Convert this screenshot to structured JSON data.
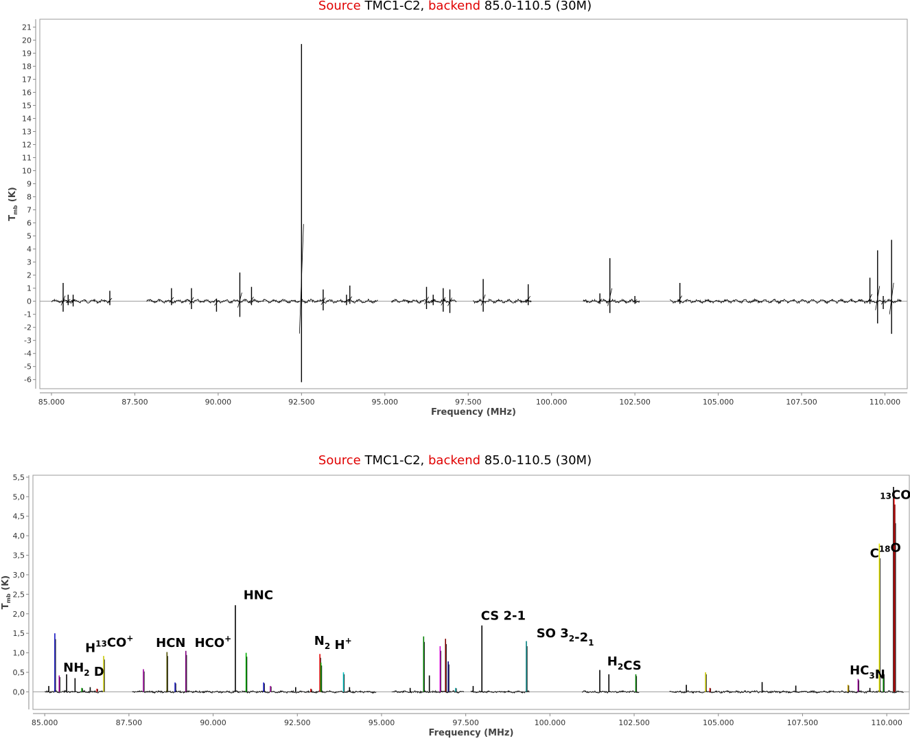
{
  "title_parts": {
    "w1": "Source",
    "w2": "TMC1-C2,",
    "w3": "backend",
    "w4": "85.0-110.5 (30M)"
  },
  "chart_data": [
    {
      "type": "line",
      "title": "Source TMC1-C2, backend 85.0-110.5 (30M)",
      "xlabel": "Frequency (MHz)",
      "ylabel": "T_mb (K)",
      "xlim": [
        84.65,
        110.67
      ],
      "ylim": [
        -6.7,
        21.6
      ],
      "xticks": [
        "85.000",
        "87.500",
        "90.000",
        "92.500",
        "95.000",
        "97.500",
        "100.000",
        "102.500",
        "105.000",
        "107.500",
        "110.000"
      ],
      "yticks": [
        "-6",
        "-5",
        "-4",
        "-3",
        "-2",
        "-1",
        "0",
        "1",
        "2",
        "3",
        "4",
        "5",
        "6",
        "7",
        "8",
        "9",
        "10",
        "11",
        "12",
        "13",
        "14",
        "15",
        "16",
        "17",
        "18",
        "19",
        "20",
        "21"
      ],
      "grid": false,
      "segments": [
        [
          85.0,
          86.75
        ],
        [
          87.85,
          92.45
        ],
        [
          92.5,
          94.8
        ],
        [
          95.2,
          97.15
        ],
        [
          97.65,
          99.4
        ],
        [
          100.95,
          102.65
        ],
        [
          103.55,
          110.5
        ]
      ],
      "features": [
        {
          "x": 85.35,
          "ymax": 1.4,
          "ymin": -0.8
        },
        {
          "x": 85.5,
          "ymax": 0.5,
          "ymin": -0.3
        },
        {
          "x": 85.65,
          "ymax": 0.5,
          "ymin": -0.4
        },
        {
          "x": 86.75,
          "ymax": 0.8,
          "ymin": -0.3
        },
        {
          "x": 88.6,
          "ymax": 1.0,
          "ymin": -0.3
        },
        {
          "x": 89.2,
          "ymax": 1.0,
          "ymin": -0.6
        },
        {
          "x": 89.95,
          "ymax": 0.2,
          "ymin": -0.8
        },
        {
          "x": 90.65,
          "ymax": 2.2,
          "ymin": -1.2
        },
        {
          "x": 91.0,
          "ymax": 1.1,
          "ymin": -0.3
        },
        {
          "x": 92.5,
          "ymax": 19.7,
          "ymin": -6.2
        },
        {
          "x": 93.15,
          "ymax": 0.9,
          "ymin": -0.7
        },
        {
          "x": 93.85,
          "ymax": 0.5,
          "ymin": -0.3
        },
        {
          "x": 93.95,
          "ymax": 1.2,
          "ymin": -0.2
        },
        {
          "x": 96.25,
          "ymax": 1.1,
          "ymin": -0.6
        },
        {
          "x": 96.45,
          "ymax": 0.5,
          "ymin": -0.3
        },
        {
          "x": 96.75,
          "ymax": 1.0,
          "ymin": -0.8
        },
        {
          "x": 96.95,
          "ymax": 0.9,
          "ymin": -0.9
        },
        {
          "x": 97.95,
          "ymax": 1.7,
          "ymin": -0.8
        },
        {
          "x": 99.3,
          "ymax": 1.3,
          "ymin": -0.3
        },
        {
          "x": 101.45,
          "ymax": 0.6,
          "ymin": -0.2
        },
        {
          "x": 101.75,
          "ymax": 3.3,
          "ymin": -0.9
        },
        {
          "x": 102.5,
          "ymax": 0.4,
          "ymin": -0.2
        },
        {
          "x": 103.85,
          "ymax": 1.4,
          "ymin": -0.2
        },
        {
          "x": 109.55,
          "ymax": 1.8,
          "ymin": -0.2
        },
        {
          "x": 109.78,
          "ymax": 3.9,
          "ymin": -1.7
        },
        {
          "x": 109.95,
          "ymax": 0.4,
          "ymin": -0.6
        },
        {
          "x": 110.2,
          "ymax": 4.7,
          "ymin": -2.5
        }
      ]
    },
    {
      "type": "line",
      "title": "Source TMC1-C2, backend 85.0-110.5 (30M)",
      "xlabel": "Frequency (MHz)",
      "ylabel": "T_mb (K)",
      "xlim": [
        84.65,
        110.67
      ],
      "ylim": [
        -0.45,
        5.55
      ],
      "xticks": [
        "85.000",
        "87.500",
        "90.000",
        "92.500",
        "95.000",
        "97.500",
        "100.000",
        "102.500",
        "105.000",
        "107.500",
        "110.000"
      ],
      "yticks": [
        "0,0",
        "0,5",
        "1,0",
        "1,5",
        "2,0",
        "2,5",
        "3,0",
        "3,5",
        "4,0",
        "4,5",
        "5,0",
        "5,5"
      ],
      "grid": false,
      "segments": [
        [
          85.0,
          86.75
        ],
        [
          87.6,
          90.85
        ],
        [
          90.85,
          94.85
        ],
        [
          95.3,
          97.45
        ],
        [
          97.65,
          99.4
        ],
        [
          100.95,
          102.65
        ],
        [
          103.55,
          110.5
        ]
      ],
      "lines": [
        {
          "x": 85.12,
          "y": 0.15,
          "color": "#000000"
        },
        {
          "x": 85.3,
          "y": 1.5,
          "color": "#1010c0"
        },
        {
          "x": 85.43,
          "y": 0.42,
          "color": "#a000a0"
        },
        {
          "x": 85.65,
          "y": 0.45,
          "color": "#000000"
        },
        {
          "x": 85.9,
          "y": 0.35,
          "color": "#000000"
        },
        {
          "x": 86.1,
          "y": 0.1,
          "color": "#00a000"
        },
        {
          "x": 86.35,
          "y": 0.12,
          "color": "#000000"
        },
        {
          "x": 86.55,
          "y": 0.08,
          "color": "#e00000"
        },
        {
          "x": 86.75,
          "y": 0.92,
          "color": "#c8c800"
        },
        {
          "x": 87.93,
          "y": 0.58,
          "color": "#a000a0"
        },
        {
          "x": 88.63,
          "y": 1.02,
          "color": "#505000"
        },
        {
          "x": 88.87,
          "y": 0.24,
          "color": "#1010c0"
        },
        {
          "x": 89.19,
          "y": 1.05,
          "color": "#800080"
        },
        {
          "x": 90.66,
          "y": 2.22,
          "color": "#000000"
        },
        {
          "x": 90.98,
          "y": 1.0,
          "color": "#00b000"
        },
        {
          "x": 91.5,
          "y": 0.24,
          "color": "#1010c0"
        },
        {
          "x": 91.7,
          "y": 0.15,
          "color": "#a000a0"
        },
        {
          "x": 92.45,
          "y": 0.12,
          "color": "#000000"
        },
        {
          "x": 92.9,
          "y": 0.08,
          "color": "#e00000"
        },
        {
          "x": 93.17,
          "y": 0.97,
          "color": "#e00000"
        },
        {
          "x": 93.2,
          "y": 0.75,
          "color": "#00b000"
        },
        {
          "x": 93.87,
          "y": 0.5,
          "color": "#00c0c0"
        },
        {
          "x": 94.05,
          "y": 0.12,
          "color": "#000000"
        },
        {
          "x": 95.85,
          "y": 0.1,
          "color": "#000000"
        },
        {
          "x": 96.25,
          "y": 1.42,
          "color": "#008000"
        },
        {
          "x": 96.42,
          "y": 0.42,
          "color": "#000000"
        },
        {
          "x": 96.74,
          "y": 1.17,
          "color": "#d000d0"
        },
        {
          "x": 96.9,
          "y": 1.36,
          "color": "#800000"
        },
        {
          "x": 96.98,
          "y": 0.78,
          "color": "#000080"
        },
        {
          "x": 97.2,
          "y": 0.1,
          "color": "#00a0a0"
        },
        {
          "x": 97.72,
          "y": 0.15,
          "color": "#000000"
        },
        {
          "x": 97.98,
          "y": 1.7,
          "color": "#000000"
        },
        {
          "x": 99.3,
          "y": 1.3,
          "color": "#008080"
        },
        {
          "x": 101.48,
          "y": 0.56,
          "color": "#000000"
        },
        {
          "x": 101.75,
          "y": 0.45,
          "color": "#000000"
        },
        {
          "x": 102.55,
          "y": 0.45,
          "color": "#008000"
        },
        {
          "x": 104.05,
          "y": 0.18,
          "color": "#000000"
        },
        {
          "x": 104.62,
          "y": 0.5,
          "color": "#c8c800"
        },
        {
          "x": 104.75,
          "y": 0.1,
          "color": "#e00000"
        },
        {
          "x": 106.3,
          "y": 0.25,
          "color": "#000000"
        },
        {
          "x": 107.3,
          "y": 0.16,
          "color": "#000000"
        },
        {
          "x": 108.85,
          "y": 0.18,
          "color": "#c8a000"
        },
        {
          "x": 109.15,
          "y": 0.33,
          "color": "#a000a0"
        },
        {
          "x": 109.5,
          "y": 0.1,
          "color": "#000000"
        },
        {
          "x": 109.78,
          "y": 3.8,
          "color": "#e8e800"
        },
        {
          "x": 109.9,
          "y": 0.5,
          "color": "#008000"
        },
        {
          "x": 110.2,
          "y": 5.25,
          "color": "#000000"
        },
        {
          "x": 110.22,
          "y": 5.05,
          "color": "#ff2020"
        },
        {
          "x": 110.24,
          "y": 4.8,
          "color": "#800000"
        }
      ],
      "annotations": [
        {
          "name": "nh2d",
          "parts": [
            [
              "NH",
              ""
            ],
            [
              "2",
              "sub"
            ],
            [
              " D",
              ""
            ]
          ],
          "x": 85.55,
          "y": 0.52
        },
        {
          "name": "h13co+",
          "parts": [
            [
              "H",
              ""
            ],
            [
              "13",
              "sup"
            ],
            [
              "CO",
              ""
            ],
            [
              "+",
              "sup"
            ]
          ],
          "x": 86.2,
          "y": 1.02
        },
        {
          "name": "hcn",
          "parts": [
            [
              "HCN",
              ""
            ]
          ],
          "x": 88.3,
          "y": 1.15
        },
        {
          "name": "hco+",
          "parts": [
            [
              "HCO",
              ""
            ],
            [
              "+",
              "sup"
            ]
          ],
          "x": 89.45,
          "y": 1.15
        },
        {
          "name": "hnc",
          "parts": [
            [
              "HNC",
              ""
            ]
          ],
          "x": 90.9,
          "y": 2.37
        },
        {
          "name": "n2h+",
          "parts": [
            [
              "N",
              ""
            ],
            [
              "2",
              "sub"
            ],
            [
              " H",
              ""
            ],
            [
              "+",
              "sup"
            ]
          ],
          "x": 93.0,
          "y": 1.2
        },
        {
          "name": "cs",
          "parts": [
            [
              "CS 2-1",
              ""
            ]
          ],
          "x": 97.95,
          "y": 1.85
        },
        {
          "name": "so",
          "parts": [
            [
              "SO 3",
              ""
            ],
            [
              "2",
              "sub"
            ],
            [
              "-2",
              ""
            ],
            [
              "1",
              "sub"
            ]
          ],
          "x": 99.6,
          "y": 1.4
        },
        {
          "name": "h2cs",
          "parts": [
            [
              "H",
              ""
            ],
            [
              "2",
              "sub"
            ],
            [
              "CS",
              ""
            ]
          ],
          "x": 101.7,
          "y": 0.68
        },
        {
          "name": "hc3n",
          "parts": [
            [
              "HC",
              ""
            ],
            [
              "3",
              "sub"
            ],
            [
              "N",
              ""
            ]
          ],
          "x": 108.9,
          "y": 0.45
        },
        {
          "name": "c18o",
          "parts": [
            [
              "C",
              ""
            ],
            [
              "18",
              "sup"
            ],
            [
              "O",
              ""
            ]
          ],
          "x": 109.5,
          "y": 3.45
        },
        {
          "name": "13co",
          "parts": [
            [
              "13",
              "sup"
            ],
            [
              "CO",
              ""
            ]
          ],
          "x": 109.8,
          "y": 4.8
        }
      ]
    }
  ]
}
